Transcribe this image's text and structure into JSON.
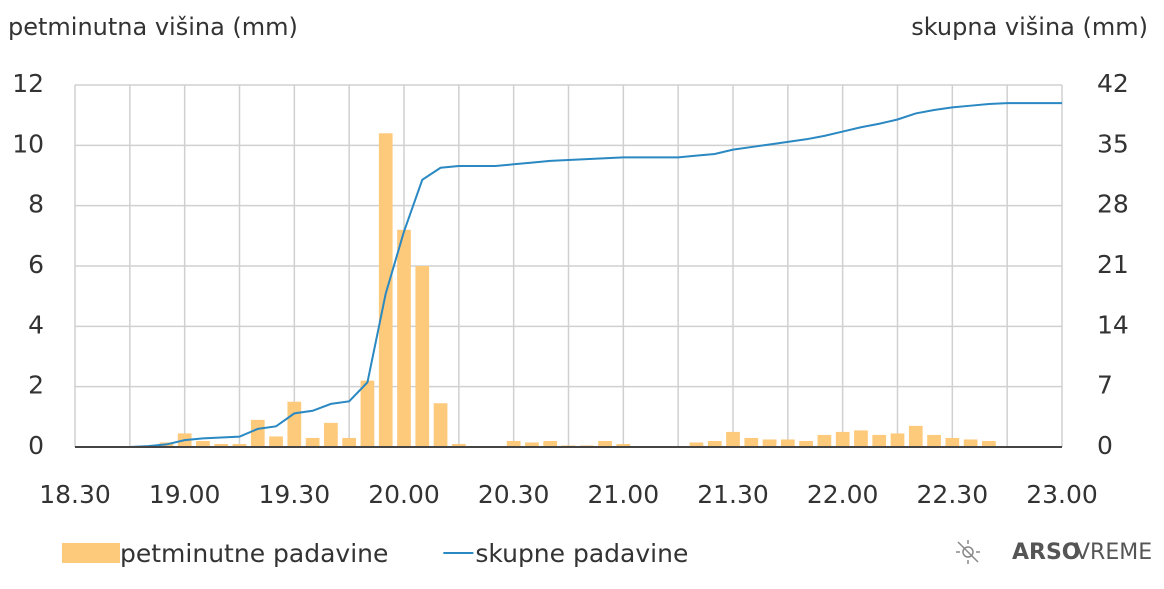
{
  "chart_data": {
    "type": "bar_line",
    "y_axis_title": "petminutna višina (mm)",
    "y2_axis_title": "skupna višina (mm)",
    "categories": [
      "18.30",
      null,
      null,
      null,
      null,
      null,
      "19.00",
      null,
      null,
      null,
      null,
      null,
      "19.30",
      null,
      null,
      null,
      null,
      null,
      "20.00",
      null,
      null,
      null,
      null,
      null,
      "20.30",
      null,
      null,
      null,
      null,
      null,
      "21.00",
      null,
      null,
      null,
      null,
      null,
      "21.30",
      null,
      null,
      null,
      null,
      null,
      "22.00",
      null,
      null,
      null,
      null,
      null,
      "22.30",
      null,
      null,
      null,
      null,
      null,
      "23.00"
    ],
    "series": [
      {
        "name": "petminutne padavine",
        "type": "bar",
        "color": "#fdc97b",
        "values": [
          0,
          0,
          0,
          0,
          0,
          0.15,
          0.45,
          0.2,
          0.1,
          0.1,
          0.9,
          0.35,
          1.5,
          0.3,
          0.8,
          0.3,
          2.2,
          10.4,
          7.2,
          6.0,
          1.45,
          0.1,
          0,
          0,
          0.2,
          0.15,
          0.2,
          0.05,
          0.05,
          0.2,
          0.1,
          0,
          0,
          0,
          0.15,
          0.2,
          0.5,
          0.3,
          0.25,
          0.25,
          0.2,
          0.4,
          0.5,
          0.55,
          0.4,
          0.45,
          0.7,
          0.4,
          0.3,
          0.25,
          0.2,
          0,
          0,
          0,
          0
        ]
      },
      {
        "name": "skupne padavine",
        "type": "line",
        "color": "#2a88c2",
        "axis": "y2",
        "values": [
          0,
          0,
          0,
          0,
          0.1,
          0.3,
          0.8,
          1.0,
          1.1,
          1.2,
          2.1,
          2.4,
          3.9,
          4.2,
          5.0,
          5.3,
          7.5,
          17.8,
          25.0,
          31.0,
          32.4,
          32.6,
          32.6,
          32.6,
          32.8,
          33.0,
          33.2,
          33.3,
          33.4,
          33.5,
          33.6,
          33.6,
          33.6,
          33.6,
          33.8,
          34.0,
          34.5,
          34.8,
          35.1,
          35.4,
          35.7,
          36.1,
          36.6,
          37.1,
          37.5,
          38.0,
          38.7,
          39.1,
          39.4,
          39.6,
          39.8,
          39.9,
          39.9,
          39.9,
          39.9
        ]
      }
    ],
    "ylim": [
      0,
      12
    ],
    "yticks": [
      0,
      2,
      4,
      6,
      8,
      10,
      12
    ],
    "y2lim": [
      0,
      42
    ],
    "y2ticks": [
      0,
      7,
      14,
      21,
      28,
      35,
      42
    ],
    "grid": true,
    "legend": "bottom",
    "brand": {
      "bold": "ARSO",
      "regular": "VREME"
    }
  }
}
